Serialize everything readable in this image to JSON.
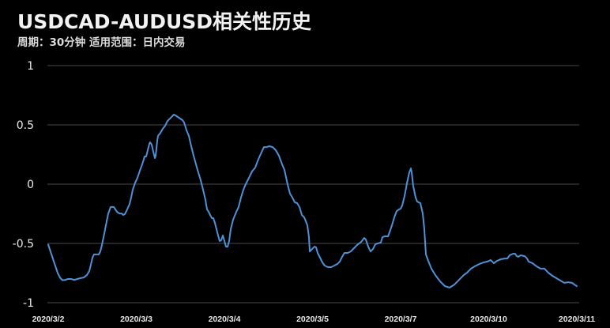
{
  "header": {
    "title": "USDCAD-AUDUSD相关性历史",
    "subtitle": "周期：30分钟  适用范围：日内交易"
  },
  "colors": {
    "background": "#000000",
    "line": "#4f91d6",
    "grid": "#4a4a4a",
    "text": "#ececec"
  },
  "chart_data": {
    "type": "line",
    "title": "USDCAD-AUDUSD相关性历史",
    "subtitle": "周期：30分钟  适用范围：日内交易",
    "xlabel": "",
    "ylabel": "",
    "ylim": [
      -1,
      1
    ],
    "yticks": [
      1,
      0.5,
      0,
      -0.5,
      -1
    ],
    "ytick_labels": [
      "1",
      "0.5",
      "0",
      "-0.5",
      "-1"
    ],
    "categories": [
      "2020/3/2",
      "2020/3/3",
      "2020/3/4",
      "2020/3/5",
      "2020/3/7",
      "2020/3/10",
      "2020/3/11"
    ],
    "grid": true,
    "legend": null,
    "series": [
      {
        "name": "USDCAD-AUDUSD correlation",
        "x_note": "x is fractional category index (0 = 2020/3/2 ... 6 = 2020/3/11)",
        "points": [
          [
            0.0,
            -0.51
          ],
          [
            0.027,
            -0.57
          ],
          [
            0.054,
            -0.63
          ],
          [
            0.081,
            -0.69
          ],
          [
            0.108,
            -0.75
          ],
          [
            0.135,
            -0.79
          ],
          [
            0.161,
            -0.81
          ],
          [
            0.197,
            -0.807
          ],
          [
            0.224,
            -0.8
          ],
          [
            0.26,
            -0.8
          ],
          [
            0.296,
            -0.807
          ],
          [
            0.332,
            -0.8
          ],
          [
            0.368,
            -0.793
          ],
          [
            0.404,
            -0.787
          ],
          [
            0.439,
            -0.767
          ],
          [
            0.466,
            -0.733
          ],
          [
            0.484,
            -0.68
          ],
          [
            0.502,
            -0.62
          ],
          [
            0.52,
            -0.593
          ],
          [
            0.547,
            -0.593
          ],
          [
            0.574,
            -0.593
          ],
          [
            0.592,
            -0.567
          ],
          [
            0.61,
            -0.513
          ],
          [
            0.628,
            -0.45
          ],
          [
            0.628,
            -0.45
          ],
          [
            0.655,
            -0.347
          ],
          [
            0.682,
            -0.247
          ],
          [
            0.709,
            -0.193
          ],
          [
            0.709,
            -0.193
          ],
          [
            0.744,
            -0.193
          ],
          [
            0.78,
            -0.233
          ],
          [
            0.807,
            -0.247
          ],
          [
            0.834,
            -0.247
          ],
          [
            0.852,
            -0.26
          ],
          [
            0.87,
            -0.253
          ],
          [
            0.897,
            -0.213
          ],
          [
            0.924,
            -0.167
          ],
          [
            0.942,
            -0.113
          ],
          [
            0.96,
            -0.047
          ],
          [
            0.987,
            0.013
          ],
          [
            1.013,
            0.053
          ],
          [
            1.049,
            0.133
          ],
          [
            1.067,
            0.167
          ],
          [
            1.094,
            0.233
          ],
          [
            1.112,
            0.233
          ],
          [
            1.13,
            0.287
          ],
          [
            1.148,
            0.34
          ],
          [
            1.157,
            0.353
          ],
          [
            1.175,
            0.333
          ],
          [
            1.193,
            0.273
          ],
          [
            1.211,
            0.22
          ],
          [
            1.22,
            0.24
          ],
          [
            1.238,
            0.367
          ],
          [
            1.247,
            0.407
          ],
          [
            1.274,
            0.433
          ],
          [
            1.3,
            0.467
          ],
          [
            1.327,
            0.493
          ],
          [
            1.354,
            0.533
          ],
          [
            1.381,
            0.553
          ],
          [
            1.408,
            0.573
          ],
          [
            1.426,
            0.587
          ],
          [
            1.444,
            0.58
          ],
          [
            1.471,
            0.567
          ],
          [
            1.498,
            0.553
          ],
          [
            1.525,
            0.54
          ],
          [
            1.543,
            0.52
          ],
          [
            1.57,
            0.453
          ],
          [
            1.596,
            0.407
          ],
          [
            1.623,
            0.32
          ],
          [
            1.65,
            0.24
          ],
          [
            1.695,
            0.12
          ],
          [
            1.731,
            0.033
          ],
          [
            1.758,
            -0.047
          ],
          [
            1.785,
            -0.133
          ],
          [
            1.803,
            -0.213
          ],
          [
            1.821,
            -0.233
          ],
          [
            1.839,
            -0.26
          ],
          [
            1.857,
            -0.287
          ],
          [
            1.874,
            -0.287
          ],
          [
            1.892,
            -0.327
          ],
          [
            1.91,
            -0.38
          ],
          [
            1.928,
            -0.433
          ],
          [
            1.946,
            -0.48
          ],
          [
            1.964,
            -0.473
          ],
          [
            1.982,
            -0.433
          ],
          [
            2.0,
            -0.48
          ],
          [
            2.018,
            -0.527
          ],
          [
            2.036,
            -0.527
          ],
          [
            2.054,
            -0.48
          ],
          [
            2.072,
            -0.38
          ],
          [
            2.099,
            -0.3
          ],
          [
            2.135,
            -0.233
          ],
          [
            2.161,
            -0.193
          ],
          [
            2.188,
            -0.113
          ],
          [
            2.215,
            -0.047
          ],
          [
            2.242,
            0.0
          ],
          [
            2.278,
            0.053
          ],
          [
            2.314,
            0.107
          ],
          [
            2.35,
            0.14
          ],
          [
            2.377,
            0.193
          ],
          [
            2.404,
            0.24
          ],
          [
            2.448,
            0.313
          ],
          [
            2.475,
            0.313
          ],
          [
            2.511,
            0.32
          ],
          [
            2.547,
            0.313
          ],
          [
            2.583,
            0.287
          ],
          [
            2.619,
            0.24
          ],
          [
            2.655,
            0.167
          ],
          [
            2.682,
            0.12
          ],
          [
            2.717,
            0.0
          ],
          [
            2.744,
            -0.08
          ],
          [
            2.771,
            -0.113
          ],
          [
            2.798,
            -0.153
          ],
          [
            2.825,
            -0.16
          ],
          [
            2.852,
            -0.193
          ],
          [
            2.879,
            -0.26
          ],
          [
            2.906,
            -0.28
          ],
          [
            2.924,
            -0.313
          ],
          [
            2.942,
            -0.347
          ],
          [
            2.96,
            -0.447
          ],
          [
            2.969,
            -0.567
          ],
          [
            2.996,
            -0.547
          ],
          [
            3.022,
            -0.527
          ],
          [
            3.04,
            -0.533
          ],
          [
            3.058,
            -0.58
          ],
          [
            3.085,
            -0.62
          ],
          [
            3.112,
            -0.66
          ],
          [
            3.139,
            -0.687
          ],
          [
            3.175,
            -0.7
          ],
          [
            3.211,
            -0.7
          ],
          [
            3.247,
            -0.687
          ],
          [
            3.283,
            -0.673
          ],
          [
            3.309,
            -0.653
          ],
          [
            3.336,
            -0.613
          ],
          [
            3.363,
            -0.58
          ],
          [
            3.399,
            -0.58
          ],
          [
            3.435,
            -0.567
          ],
          [
            3.471,
            -0.54
          ],
          [
            3.507,
            -0.513
          ],
          [
            3.552,
            -0.487
          ],
          [
            3.587,
            -0.453
          ],
          [
            3.605,
            -0.467
          ],
          [
            3.632,
            -0.527
          ],
          [
            3.659,
            -0.567
          ],
          [
            3.686,
            -0.547
          ],
          [
            3.713,
            -0.507
          ],
          [
            3.74,
            -0.5
          ],
          [
            3.776,
            -0.493
          ],
          [
            3.794,
            -0.447
          ],
          [
            3.821,
            -0.44
          ],
          [
            3.857,
            -0.44
          ],
          [
            3.883,
            -0.387
          ],
          [
            3.901,
            -0.347
          ],
          [
            3.928,
            -0.28
          ],
          [
            3.955,
            -0.227
          ],
          [
            3.982,
            -0.213
          ],
          [
            4.0,
            -0.207
          ],
          [
            4.018,
            -0.18
          ],
          [
            4.045,
            -0.1
          ],
          [
            4.072,
            0.007
          ],
          [
            4.099,
            0.1
          ],
          [
            4.117,
            0.133
          ],
          [
            4.126,
            0.1
          ],
          [
            4.143,
            -0.013
          ],
          [
            4.17,
            -0.113
          ],
          [
            4.188,
            -0.147
          ],
          [
            4.224,
            -0.16
          ],
          [
            4.251,
            -0.247
          ],
          [
            4.269,
            -0.38
          ],
          [
            4.287,
            -0.593
          ],
          [
            4.314,
            -0.647
          ],
          [
            4.35,
            -0.713
          ],
          [
            4.395,
            -0.767
          ],
          [
            4.448,
            -0.82
          ],
          [
            4.502,
            -0.86
          ],
          [
            4.556,
            -0.873
          ],
          [
            4.61,
            -0.847
          ],
          [
            4.664,
            -0.807
          ],
          [
            4.717,
            -0.767
          ],
          [
            4.753,
            -0.747
          ],
          [
            4.798,
            -0.713
          ],
          [
            4.843,
            -0.693
          ],
          [
            4.897,
            -0.673
          ],
          [
            4.942,
            -0.66
          ],
          [
            4.987,
            -0.653
          ],
          [
            5.022,
            -0.64
          ],
          [
            5.058,
            -0.667
          ],
          [
            5.094,
            -0.647
          ],
          [
            5.139,
            -0.633
          ],
          [
            5.184,
            -0.627
          ],
          [
            5.211,
            -0.627
          ],
          [
            5.238,
            -0.6
          ],
          [
            5.274,
            -0.587
          ],
          [
            5.3,
            -0.587
          ],
          [
            5.318,
            -0.607
          ],
          [
            5.336,
            -0.613
          ],
          [
            5.363,
            -0.6
          ],
          [
            5.408,
            -0.607
          ],
          [
            5.435,
            -0.627
          ],
          [
            5.453,
            -0.653
          ],
          [
            5.498,
            -0.667
          ],
          [
            5.543,
            -0.693
          ],
          [
            5.587,
            -0.713
          ],
          [
            5.632,
            -0.713
          ],
          [
            5.677,
            -0.747
          ],
          [
            5.722,
            -0.773
          ],
          [
            5.767,
            -0.793
          ],
          [
            5.812,
            -0.813
          ],
          [
            5.857,
            -0.833
          ],
          [
            5.901,
            -0.827
          ],
          [
            5.946,
            -0.833
          ],
          [
            5.973,
            -0.847
          ],
          [
            6.0,
            -0.86
          ]
        ]
      }
    ]
  },
  "axis": {
    "y_labels": [
      "1",
      "0.5",
      "0",
      "-0.5",
      "-1"
    ],
    "x_labels": [
      "2020/3/2",
      "2020/3/3",
      "2020/3/4",
      "2020/3/5",
      "2020/3/7",
      "2020/3/10",
      "2020/3/11"
    ]
  }
}
